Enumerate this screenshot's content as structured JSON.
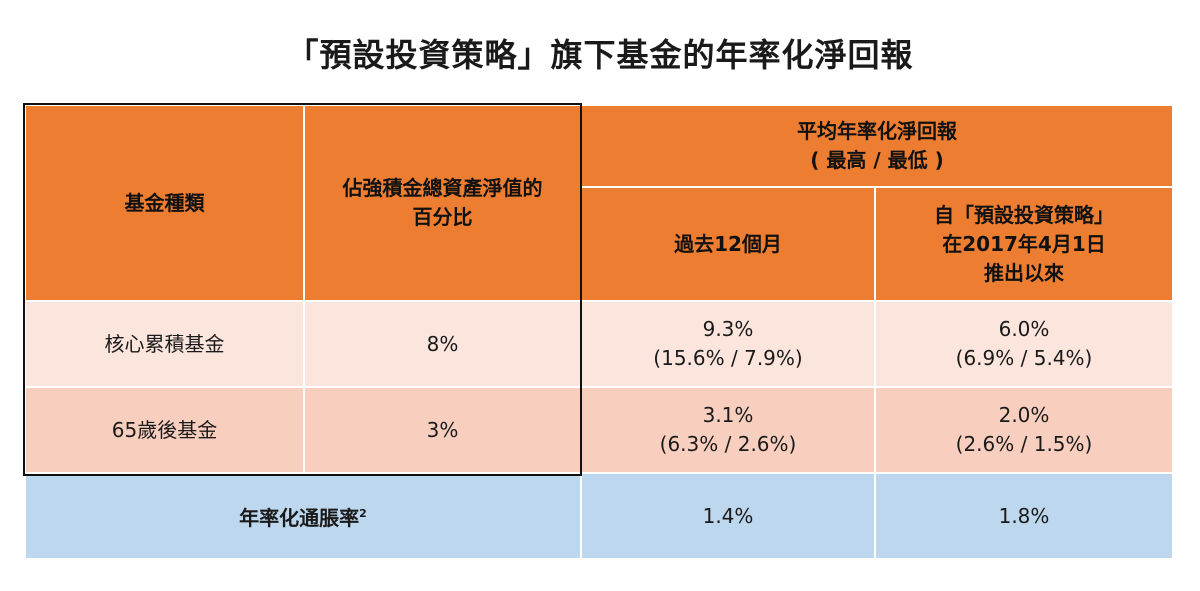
{
  "title": "「預設投資策略」旗下基金的年率化淨回報",
  "table": {
    "col_fund_type": "基金種類",
    "col_percent_line1": "佔強積金總資產淨值的",
    "col_percent_line2": "百分比",
    "col_avg_line1": "平均年率化淨回報",
    "col_avg_line2": "( 最高 / 最低 )",
    "col_past12": "過去12個月",
    "col_since_line1": "自「預設投資策略」",
    "col_since_line2": "在2017年4月1日",
    "col_since_line3": "推出以來",
    "rows": [
      {
        "fund": "核心累積基金",
        "percent": "8%",
        "past12_avg": "9.3%",
        "past12_range": "(15.6% / 7.9%)",
        "since_avg": "6.0%",
        "since_range": "(6.9% / 5.4%)"
      },
      {
        "fund": "65歲後基金",
        "percent": "3%",
        "past12_avg": "3.1%",
        "past12_range": "(6.3% / 2.6%)",
        "since_avg": "2.0%",
        "since_range": "(2.6% / 1.5%)"
      }
    ],
    "inflation_label": "年率化通脹率",
    "inflation_footnote": "2",
    "inflation_past12": "1.4%",
    "inflation_since": "1.8%"
  }
}
